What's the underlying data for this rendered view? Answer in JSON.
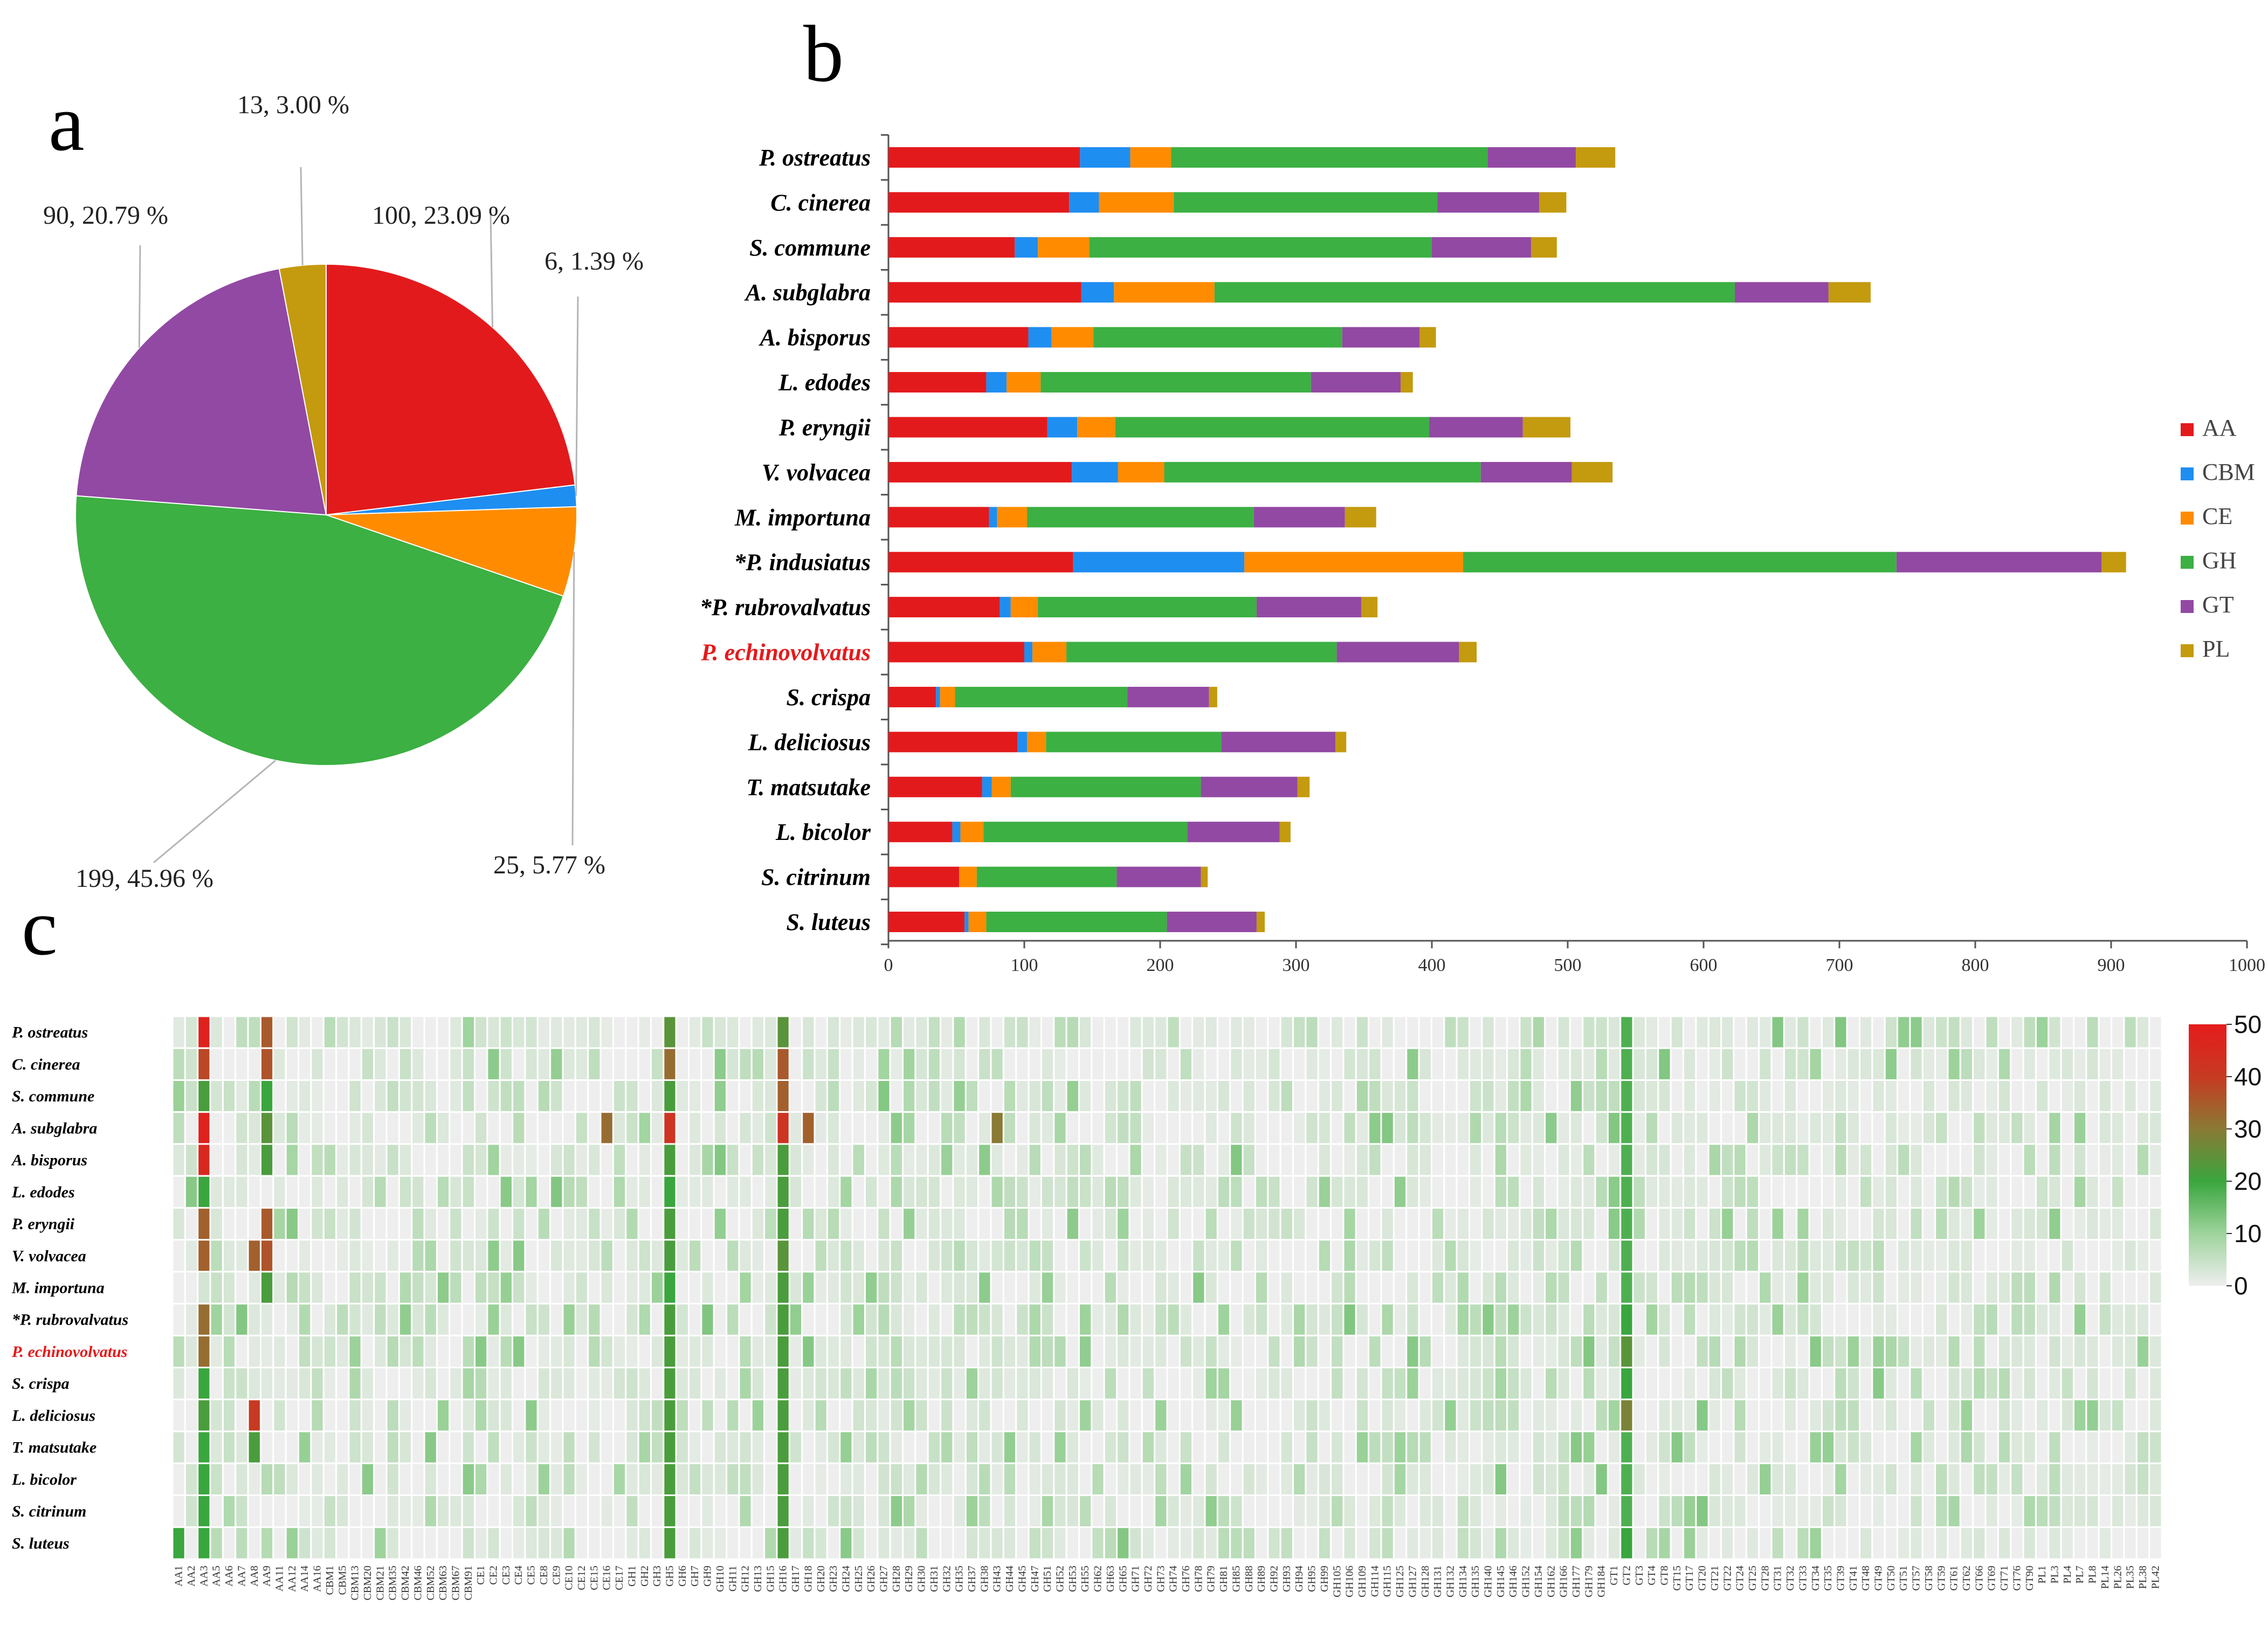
{
  "panels": {
    "a": "a",
    "b": "b",
    "c": "c"
  },
  "colors": {
    "AA": "#e31a1c",
    "CBM": "#1f8ef1",
    "CE": "#ff8c00",
    "GH": "#3cb043",
    "GT": "#9249a3",
    "PL": "#c49a0f",
    "highlight": "#e41a1c",
    "text": "#000000"
  },
  "chart_data": [
    {
      "type": "pie",
      "panel": "a",
      "slices": [
        {
          "name": "AA",
          "value": 100,
          "percent": 23.09,
          "label": "100,  23.09 %"
        },
        {
          "name": "CBM",
          "value": 6,
          "percent": 1.39,
          "label": "6,  1.39 %"
        },
        {
          "name": "CE",
          "value": 25,
          "percent": 5.77,
          "label": "25, 5.77 %"
        },
        {
          "name": "GH",
          "value": 199,
          "percent": 45.96,
          "label": "199, 45.96 %"
        },
        {
          "name": "GT",
          "value": 90,
          "percent": 20.79,
          "label": "90,  20.79 %"
        },
        {
          "name": "PL",
          "value": 13,
          "percent": 3.0,
          "label": "13,  3.00 %"
        }
      ]
    },
    {
      "type": "bar",
      "panel": "b",
      "orientation": "horizontal",
      "stacked": true,
      "categories": [
        "P. ostreatus",
        "C. cinerea",
        "S. commune",
        "A. subglabra",
        "A. bisporus",
        "L. edodes",
        "P. eryngii",
        "V. volvacea",
        "M. importuna",
        "*P. indusiatus",
        "*P. rubrovalvatus",
        "P. echinovolvatus",
        "S. crispa",
        "L. deliciosus",
        "T. matsutake",
        "L. bicolor",
        "S. citrinum",
        "S. luteus"
      ],
      "highlight_category": "P. echinovolvatus",
      "series": [
        {
          "name": "AA",
          "values": [
            141,
            133,
            93,
            142,
            103,
            72,
            117,
            135,
            74,
            136,
            82,
            100,
            35,
            95,
            69,
            47,
            52,
            56
          ]
        },
        {
          "name": "CBM",
          "values": [
            37,
            22,
            17,
            24,
            17,
            15,
            22,
            34,
            6,
            126,
            8,
            6,
            3,
            7,
            7,
            6,
            0,
            3
          ]
        },
        {
          "name": "CE",
          "values": [
            30,
            55,
            38,
            74,
            31,
            25,
            28,
            34,
            22,
            161,
            20,
            25,
            11,
            14,
            14,
            17,
            13,
            13
          ]
        },
        {
          "name": "GH",
          "values": [
            233,
            194,
            252,
            383,
            183,
            199,
            231,
            233,
            167,
            319,
            161,
            199,
            127,
            129,
            140,
            150,
            103,
            133
          ]
        },
        {
          "name": "GT",
          "values": [
            65,
            75,
            73,
            69,
            57,
            66,
            69,
            67,
            67,
            151,
            77,
            90,
            60,
            84,
            71,
            68,
            62,
            66
          ]
        },
        {
          "name": "PL",
          "values": [
            29,
            20,
            19,
            31,
            12,
            9,
            35,
            30,
            23,
            18,
            12,
            13,
            6,
            8,
            9,
            8,
            5,
            6
          ]
        }
      ],
      "xlim": [
        0,
        1000
      ],
      "xticks": [
        "0",
        "100",
        "200",
        "300",
        "400",
        "500",
        "600",
        "700",
        "800",
        "900",
        "1000"
      ],
      "legend": [
        "AA",
        "CBM",
        "CE",
        "GH",
        "GT",
        "PL"
      ],
      "legend_position": "right"
    },
    {
      "type": "heatmap",
      "panel": "c",
      "rows": [
        "P. ostreatus",
        "C. cinerea",
        "S. commune",
        "A. subglabra",
        "A. bisporus",
        "L. edodes",
        "P. eryngii",
        "V. volvacea",
        "M. importuna",
        "*P. rubrovalvatus",
        "P. echinovolvatus",
        "S. crispa",
        "L. deliciosus",
        "T. matsutake",
        "L. bicolor",
        "S. citrinum",
        "S. luteus"
      ],
      "highlight_row": "P. echinovolvatus",
      "columns": [
        "AA1",
        "AA2",
        "AA3",
        "AA5",
        "AA6",
        "AA7",
        "AA8",
        "AA9",
        "AA11",
        "AA12",
        "AA14",
        "AA16",
        "CBM1",
        "CBM5",
        "CBM13",
        "CBM20",
        "CBM21",
        "CBM35",
        "CBM42",
        "CBM46",
        "CBM52",
        "CBM63",
        "CBM67",
        "CBM91",
        "CE1",
        "CE2",
        "CE3",
        "CE4",
        "CE5",
        "CE8",
        "CE9",
        "CE10",
        "CE12",
        "CE15",
        "CE16",
        "CE17",
        "GH1",
        "GH2",
        "GH3",
        "GH5",
        "GH6",
        "GH7",
        "GH9",
        "GH10",
        "GH11",
        "GH12",
        "GH13",
        "GH15",
        "GH16",
        "GH17",
        "GH18",
        "GH20",
        "GH23",
        "GH24",
        "GH25",
        "GH26",
        "GH27",
        "GH28",
        "GH29",
        "GH30",
        "GH31",
        "GH32",
        "GH35",
        "GH37",
        "GH38",
        "GH43",
        "GH44",
        "GH45",
        "GH47",
        "GH51",
        "GH52",
        "GH53",
        "GH55",
        "GH62",
        "GH63",
        "GH65",
        "GH71",
        "GH72",
        "GH73",
        "GH74",
        "GH76",
        "GH78",
        "GH79",
        "GH81",
        "GH85",
        "GH88",
        "GH89",
        "GH92",
        "GH93",
        "GH94",
        "GH95",
        "GH99",
        "GH105",
        "GH106",
        "GH109",
        "GH114",
        "GH115",
        "GH125",
        "GH127",
        "GH128",
        "GH131",
        "GH132",
        "GH134",
        "GH135",
        "GH140",
        "GH145",
        "GH146",
        "GH152",
        "GH154",
        "GH162",
        "GH166",
        "GH177",
        "GH179",
        "GH184",
        "GT1",
        "GT2",
        "GT3",
        "GT4",
        "GT8",
        "GT15",
        "GT17",
        "GT20",
        "GT21",
        "GT22",
        "GT24",
        "GT25",
        "GT28",
        "GT31",
        "GT32",
        "GT33",
        "GT34",
        "GT35",
        "GT39",
        "GT41",
        "GT48",
        "GT49",
        "GT50",
        "GT51",
        "GT57",
        "GT58",
        "GT59",
        "GT61",
        "GT62",
        "GT66",
        "GT69",
        "GT71",
        "GT76",
        "GT90",
        "PL1",
        "PL3",
        "PL4",
        "PL7",
        "PL8",
        "PL14",
        "PL26",
        "PL35",
        "PL38",
        "PL42"
      ],
      "color_scale": {
        "min": 0,
        "max": 50,
        "ticks": [
          "0",
          "10",
          "20",
          "30",
          "40",
          "50"
        ],
        "colors": [
          "#eeeeee",
          "#9ed39c",
          "#3aa63e",
          "#8a7a35",
          "#c73a22",
          "#e51c1c"
        ]
      },
      "note": "cell values estimated from colors",
      "strong_cells": [
        {
          "row": 0,
          "col": "AA3",
          "value": 48
        },
        {
          "row": 0,
          "col": "AA9",
          "value": 35
        },
        {
          "row": 0,
          "col": "GH5",
          "value": 24
        },
        {
          "row": 0,
          "col": "GH16",
          "value": 24
        },
        {
          "row": 0,
          "col": "GT2",
          "value": 18
        },
        {
          "row": 1,
          "col": "AA3",
          "value": 38
        },
        {
          "row": 1,
          "col": "AA9",
          "value": 36
        },
        {
          "row": 1,
          "col": "GH5",
          "value": 32
        },
        {
          "row": 1,
          "col": "GH16",
          "value": 35
        },
        {
          "row": 1,
          "col": "GT2",
          "value": 18
        },
        {
          "row": 2,
          "col": "AA3",
          "value": 22
        },
        {
          "row": 2,
          "col": "AA9",
          "value": 20
        },
        {
          "row": 2,
          "col": "GH5",
          "value": 22
        },
        {
          "row": 2,
          "col": "GH16",
          "value": 34
        },
        {
          "row": 2,
          "col": "GT2",
          "value": 18
        },
        {
          "row": 3,
          "col": "AA3",
          "value": 48
        },
        {
          "row": 3,
          "col": "AA9",
          "value": 24
        },
        {
          "row": 3,
          "col": "CE16",
          "value": 32
        },
        {
          "row": 3,
          "col": "GH5",
          "value": 42
        },
        {
          "row": 3,
          "col": "GH16",
          "value": 42
        },
        {
          "row": 3,
          "col": "GH18",
          "value": 34
        },
        {
          "row": 3,
          "col": "GH43",
          "value": 30
        },
        {
          "row": 3,
          "col": "GT2",
          "value": 18
        },
        {
          "row": 4,
          "col": "AA3",
          "value": 46
        },
        {
          "row": 4,
          "col": "AA9",
          "value": 22
        },
        {
          "row": 4,
          "col": "GH5",
          "value": 22
        },
        {
          "row": 4,
          "col": "GH16",
          "value": 22
        },
        {
          "row": 4,
          "col": "GT2",
          "value": 18
        },
        {
          "row": 5,
          "col": "AA3",
          "value": 20
        },
        {
          "row": 5,
          "col": "GH5",
          "value": 20
        },
        {
          "row": 5,
          "col": "GH16",
          "value": 22
        },
        {
          "row": 5,
          "col": "GT2",
          "value": 18
        },
        {
          "row": 6,
          "col": "AA3",
          "value": 34
        },
        {
          "row": 6,
          "col": "AA9",
          "value": 35
        },
        {
          "row": 6,
          "col": "GH5",
          "value": 22
        },
        {
          "row": 6,
          "col": "GH16",
          "value": 22
        },
        {
          "row": 6,
          "col": "GT2",
          "value": 18
        },
        {
          "row": 7,
          "col": "AA3",
          "value": 34
        },
        {
          "row": 7,
          "col": "AA8",
          "value": 34
        },
        {
          "row": 7,
          "col": "AA9",
          "value": 36
        },
        {
          "row": 7,
          "col": "GH5",
          "value": 22
        },
        {
          "row": 7,
          "col": "GH16",
          "value": 24
        },
        {
          "row": 7,
          "col": "GT2",
          "value": 18
        },
        {
          "row": 8,
          "col": "AA9",
          "value": 22
        },
        {
          "row": 8,
          "col": "GH5",
          "value": 20
        },
        {
          "row": 8,
          "col": "GH16",
          "value": 22
        },
        {
          "row": 8,
          "col": "GT2",
          "value": 18
        },
        {
          "row": 9,
          "col": "AA3",
          "value": 32
        },
        {
          "row": 9,
          "col": "GH5",
          "value": 22
        },
        {
          "row": 9,
          "col": "GH16",
          "value": 22
        },
        {
          "row": 9,
          "col": "GT2",
          "value": 20
        },
        {
          "row": 10,
          "col": "AA3",
          "value": 32
        },
        {
          "row": 10,
          "col": "GH5",
          "value": 22
        },
        {
          "row": 10,
          "col": "GH16",
          "value": 22
        },
        {
          "row": 10,
          "col": "GT2",
          "value": 24
        },
        {
          "row": 11,
          "col": "AA3",
          "value": 20
        },
        {
          "row": 11,
          "col": "GH5",
          "value": 22
        },
        {
          "row": 11,
          "col": "GH16",
          "value": 22
        },
        {
          "row": 11,
          "col": "GT2",
          "value": 20
        },
        {
          "row": 12,
          "col": "AA3",
          "value": 22
        },
        {
          "row": 12,
          "col": "AA8",
          "value": 40
        },
        {
          "row": 12,
          "col": "GH5",
          "value": 22
        },
        {
          "row": 12,
          "col": "GH16",
          "value": 22
        },
        {
          "row": 12,
          "col": "GT2",
          "value": 28
        },
        {
          "row": 13,
          "col": "AA3",
          "value": 20
        },
        {
          "row": 13,
          "col": "AA8",
          "value": 22
        },
        {
          "row": 13,
          "col": "GH5",
          "value": 22
        },
        {
          "row": 13,
          "col": "GH16",
          "value": 22
        },
        {
          "row": 13,
          "col": "GT2",
          "value": 18
        },
        {
          "row": 14,
          "col": "AA3",
          "value": 20
        },
        {
          "row": 14,
          "col": "GH5",
          "value": 22
        },
        {
          "row": 14,
          "col": "GH16",
          "value": 22
        },
        {
          "row": 14,
          "col": "GT2",
          "value": 18
        },
        {
          "row": 15,
          "col": "AA3",
          "value": 20
        },
        {
          "row": 15,
          "col": "GH5",
          "value": 22
        },
        {
          "row": 15,
          "col": "GH16",
          "value": 22
        },
        {
          "row": 15,
          "col": "GT2",
          "value": 18
        },
        {
          "row": 16,
          "col": "AA1",
          "value": 20
        },
        {
          "row": 16,
          "col": "AA3",
          "value": 20
        },
        {
          "row": 16,
          "col": "GH5",
          "value": 22
        },
        {
          "row": 16,
          "col": "GH16",
          "value": 22
        },
        {
          "row": 16,
          "col": "GT2",
          "value": 20
        }
      ]
    }
  ]
}
